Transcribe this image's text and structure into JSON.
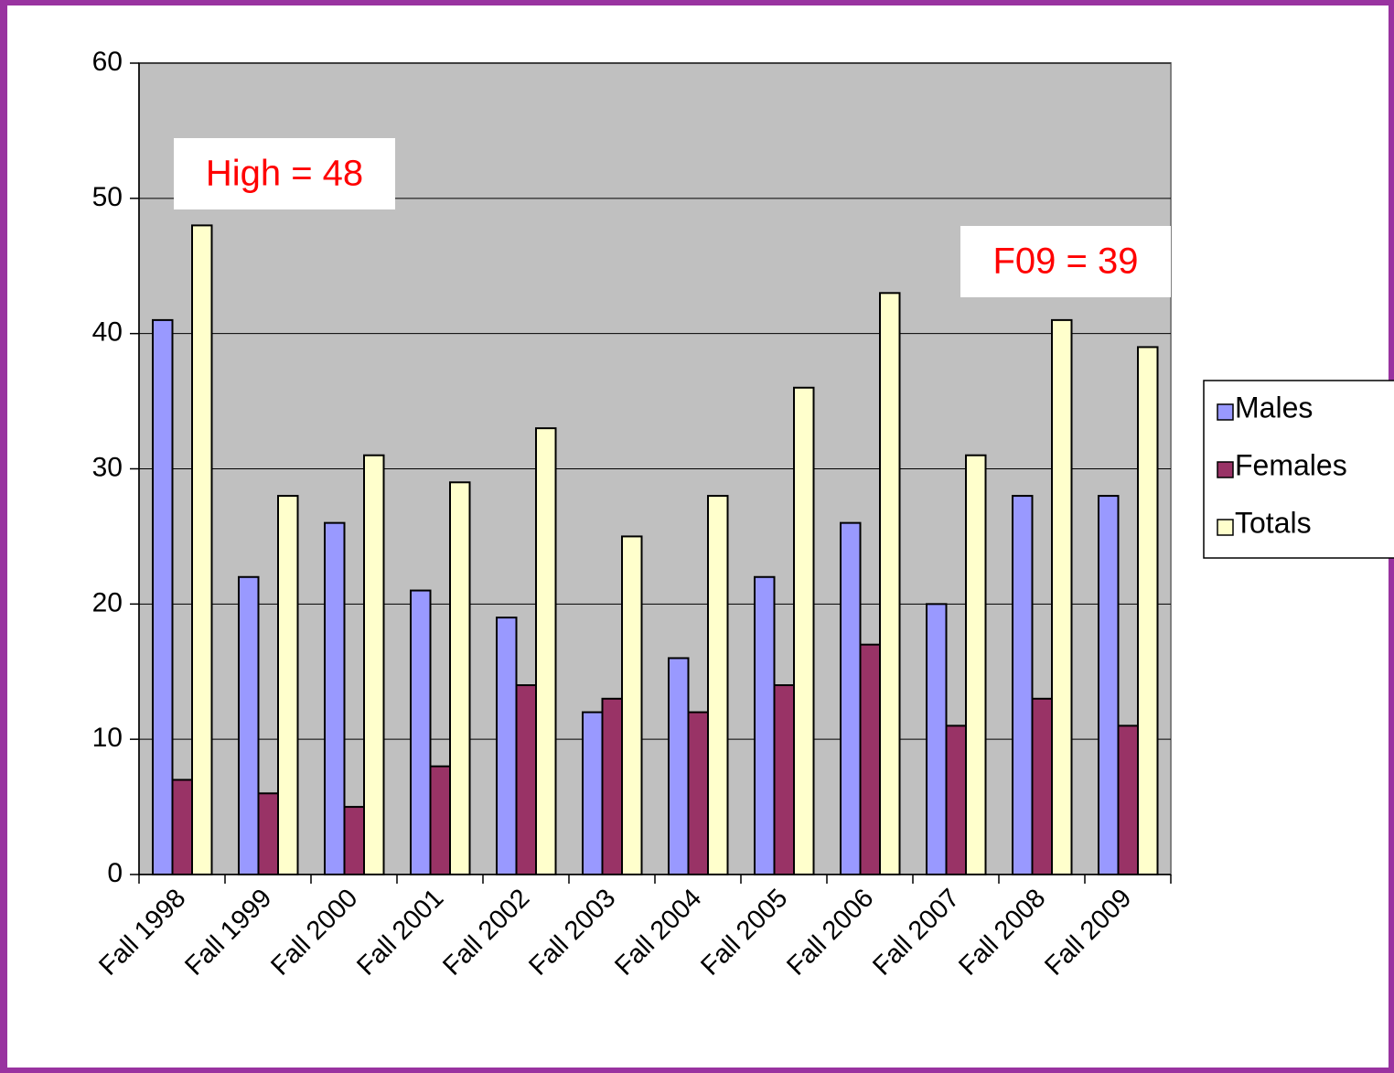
{
  "chart_data": {
    "type": "bar",
    "categories": [
      "Fall 1998",
      "Fall 1999",
      "Fall 2000",
      "Fall 2001",
      "Fall 2002",
      "Fall 2003",
      "Fall 2004",
      "Fall 2005",
      "Fall 2006",
      "Fall 2007",
      "Fall 2008",
      "Fall 2009"
    ],
    "series": [
      {
        "name": "Males",
        "color": "#9999ff",
        "values": [
          41,
          22,
          26,
          21,
          19,
          12,
          16,
          22,
          26,
          20,
          28,
          28
        ]
      },
      {
        "name": "Females",
        "color": "#993366",
        "values": [
          7,
          6,
          5,
          8,
          14,
          13,
          12,
          14,
          17,
          11,
          13,
          11
        ]
      },
      {
        "name": "Totals",
        "color": "#ffffcc",
        "values": [
          48,
          28,
          31,
          29,
          33,
          25,
          28,
          36,
          43,
          31,
          41,
          39
        ]
      }
    ],
    "annotations": [
      "High = 48",
      "F09 = 39"
    ],
    "ylim": [
      0,
      60
    ],
    "yticks": [
      0,
      10,
      20,
      30,
      40,
      50,
      60
    ],
    "grid": true,
    "legend": "right"
  }
}
